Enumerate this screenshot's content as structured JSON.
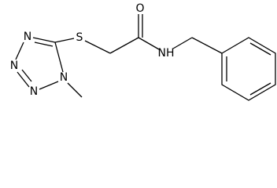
{
  "atoms": [
    {
      "label": "O"
    },
    {
      "label": "S"
    },
    {
      "label": "NH"
    },
    {
      "label": "N"
    },
    {
      "label": "N"
    },
    {
      "label": "N"
    },
    {
      "label": "N"
    }
  ]
}
